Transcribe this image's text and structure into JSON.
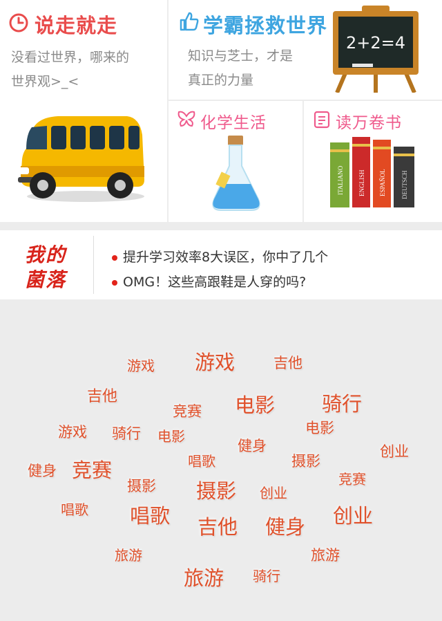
{
  "tiles": {
    "travel": {
      "title": "说走就走",
      "desc1": "没看过世界，哪来的",
      "desc2": "世界观>_<",
      "color": "#e94c4c"
    },
    "study": {
      "title": "学霸拯救世界",
      "desc1": "知识与芝士，才是",
      "desc2": "真正的力量",
      "color": "#3ea5e0",
      "board_text": "2+2=4"
    },
    "chem": {
      "title": "化学生活",
      "color": "#ef5a8c"
    },
    "books": {
      "title": "读万卷书",
      "color": "#ef5a8c",
      "spines": [
        "ITALIANO",
        "ENGLISH",
        "ESPAÑOL",
        "DEUTSCH"
      ]
    }
  },
  "corner": {
    "logo_line1": "我的",
    "logo_line2": "菌落",
    "items": [
      "提升学习效率8大误区，你中了几个",
      "OMG！这些高跟鞋是人穿的吗?"
    ]
  },
  "tags": [
    {
      "text": "游戏",
      "size": 20
    },
    {
      "text": "游戏",
      "size": 29
    },
    {
      "text": "吉他",
      "size": 21
    },
    {
      "text": "吉他",
      "size": 22
    },
    {
      "text": "竞赛",
      "size": 21
    },
    {
      "text": "电影",
      "size": 29
    },
    {
      "text": "骑行",
      "size": 29
    },
    {
      "text": "游戏",
      "size": 21
    },
    {
      "text": "骑行",
      "size": 21
    },
    {
      "text": "电影",
      "size": 20
    },
    {
      "text": "电影",
      "size": 21
    },
    {
      "text": "健身",
      "size": 21
    },
    {
      "text": "创业",
      "size": 21
    },
    {
      "text": "唱歌",
      "size": 20
    },
    {
      "text": "摄影",
      "size": 21
    },
    {
      "text": "健身",
      "size": 21
    },
    {
      "text": "竞赛",
      "size": 29
    },
    {
      "text": "竞赛",
      "size": 20
    },
    {
      "text": "摄影",
      "size": 21
    },
    {
      "text": "摄影",
      "size": 29
    },
    {
      "text": "创业",
      "size": 20
    },
    {
      "text": "唱歌",
      "size": 20
    },
    {
      "text": "唱歌",
      "size": 29
    },
    {
      "text": "吉他",
      "size": 29
    },
    {
      "text": "健身",
      "size": 29
    },
    {
      "text": "创业",
      "size": 29
    },
    {
      "text": "旅游",
      "size": 20
    },
    {
      "text": "旅游",
      "size": 21
    },
    {
      "text": "旅游",
      "size": 29
    },
    {
      "text": "骑行",
      "size": 20
    }
  ]
}
